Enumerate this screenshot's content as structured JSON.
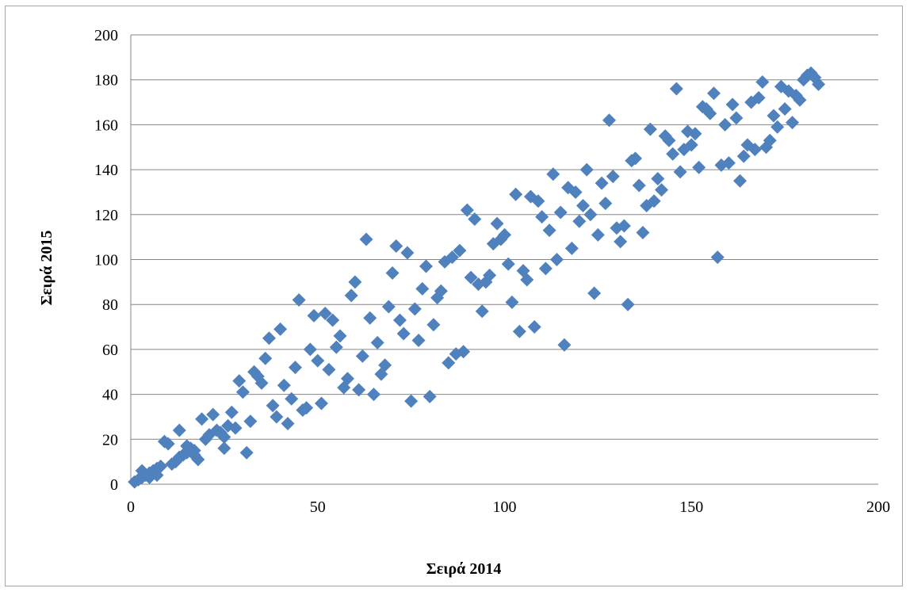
{
  "chart_data": {
    "type": "scatter",
    "title": "",
    "xlabel": "Σειρά 2014",
    "ylabel": "Σειρά 2015",
    "xlim": [
      0,
      200
    ],
    "ylim": [
      0,
      200
    ],
    "x_ticks": [
      "0",
      "50",
      "100",
      "150",
      "200"
    ],
    "y_ticks": [
      "0",
      "20",
      "40",
      "60",
      "80",
      "100",
      "120",
      "140",
      "160",
      "180",
      "200"
    ],
    "grid": "horizontal",
    "legend": "none",
    "marker": "diamond",
    "color": "#4f81bd",
    "points": [
      [
        1,
        1
      ],
      [
        2,
        2
      ],
      [
        3,
        3
      ],
      [
        3,
        6
      ],
      [
        4,
        4
      ],
      [
        5,
        5
      ],
      [
        5,
        3
      ],
      [
        6,
        6
      ],
      [
        7,
        7
      ],
      [
        7,
        4
      ],
      [
        8,
        8
      ],
      [
        9,
        19
      ],
      [
        10,
        18
      ],
      [
        11,
        9
      ],
      [
        12,
        10
      ],
      [
        13,
        24
      ],
      [
        13,
        12
      ],
      [
        14,
        13
      ],
      [
        15,
        14
      ],
      [
        15,
        17
      ],
      [
        16,
        16
      ],
      [
        17,
        15
      ],
      [
        17,
        13
      ],
      [
        18,
        11
      ],
      [
        19,
        29
      ],
      [
        20,
        20
      ],
      [
        21,
        22
      ],
      [
        22,
        31
      ],
      [
        23,
        24
      ],
      [
        24,
        23
      ],
      [
        25,
        16
      ],
      [
        25,
        21
      ],
      [
        26,
        26
      ],
      [
        27,
        32
      ],
      [
        28,
        25
      ],
      [
        29,
        46
      ],
      [
        30,
        41
      ],
      [
        31,
        14
      ],
      [
        32,
        28
      ],
      [
        33,
        50
      ],
      [
        34,
        48
      ],
      [
        35,
        45
      ],
      [
        36,
        56
      ],
      [
        37,
        65
      ],
      [
        38,
        35
      ],
      [
        39,
        30
      ],
      [
        40,
        69
      ],
      [
        41,
        44
      ],
      [
        42,
        27
      ],
      [
        43,
        38
      ],
      [
        44,
        52
      ],
      [
        45,
        82
      ],
      [
        46,
        33
      ],
      [
        47,
        34
      ],
      [
        48,
        60
      ],
      [
        49,
        75
      ],
      [
        50,
        55
      ],
      [
        51,
        36
      ],
      [
        52,
        76
      ],
      [
        53,
        51
      ],
      [
        54,
        73
      ],
      [
        55,
        61
      ],
      [
        56,
        66
      ],
      [
        57,
        43
      ],
      [
        58,
        47
      ],
      [
        59,
        84
      ],
      [
        60,
        90
      ],
      [
        61,
        42
      ],
      [
        62,
        57
      ],
      [
        63,
        109
      ],
      [
        64,
        74
      ],
      [
        65,
        40
      ],
      [
        66,
        63
      ],
      [
        67,
        49
      ],
      [
        68,
        53
      ],
      [
        69,
        79
      ],
      [
        70,
        94
      ],
      [
        71,
        106
      ],
      [
        72,
        73
      ],
      [
        73,
        67
      ],
      [
        74,
        103
      ],
      [
        75,
        37
      ],
      [
        76,
        78
      ],
      [
        77,
        64
      ],
      [
        78,
        87
      ],
      [
        79,
        97
      ],
      [
        80,
        39
      ],
      [
        81,
        71
      ],
      [
        82,
        83
      ],
      [
        83,
        86
      ],
      [
        84,
        99
      ],
      [
        85,
        54
      ],
      [
        86,
        101
      ],
      [
        87,
        58
      ],
      [
        88,
        104
      ],
      [
        89,
        59
      ],
      [
        90,
        122
      ],
      [
        91,
        92
      ],
      [
        92,
        118
      ],
      [
        93,
        89
      ],
      [
        94,
        77
      ],
      [
        95,
        90
      ],
      [
        96,
        93
      ],
      [
        97,
        107
      ],
      [
        98,
        116
      ],
      [
        99,
        109
      ],
      [
        100,
        111
      ],
      [
        101,
        98
      ],
      [
        102,
        81
      ],
      [
        103,
        129
      ],
      [
        104,
        68
      ],
      [
        105,
        95
      ],
      [
        106,
        91
      ],
      [
        107,
        128
      ],
      [
        108,
        70
      ],
      [
        109,
        126
      ],
      [
        110,
        119
      ],
      [
        111,
        96
      ],
      [
        112,
        113
      ],
      [
        113,
        138
      ],
      [
        114,
        100
      ],
      [
        115,
        121
      ],
      [
        116,
        62
      ],
      [
        117,
        132
      ],
      [
        118,
        105
      ],
      [
        119,
        130
      ],
      [
        120,
        117
      ],
      [
        121,
        124
      ],
      [
        122,
        140
      ],
      [
        123,
        120
      ],
      [
        124,
        85
      ],
      [
        125,
        111
      ],
      [
        126,
        134
      ],
      [
        127,
        125
      ],
      [
        128,
        162
      ],
      [
        129,
        137
      ],
      [
        130,
        114
      ],
      [
        131,
        108
      ],
      [
        132,
        115
      ],
      [
        133,
        80
      ],
      [
        134,
        144
      ],
      [
        135,
        145
      ],
      [
        136,
        133
      ],
      [
        137,
        112
      ],
      [
        138,
        124
      ],
      [
        139,
        158
      ],
      [
        140,
        126
      ],
      [
        141,
        136
      ],
      [
        142,
        131
      ],
      [
        143,
        155
      ],
      [
        144,
        153
      ],
      [
        145,
        147
      ],
      [
        146,
        176
      ],
      [
        147,
        139
      ],
      [
        148,
        149
      ],
      [
        149,
        157
      ],
      [
        150,
        151
      ],
      [
        151,
        156
      ],
      [
        152,
        141
      ],
      [
        153,
        168
      ],
      [
        154,
        167
      ],
      [
        155,
        165
      ],
      [
        156,
        174
      ],
      [
        157,
        101
      ],
      [
        158,
        142
      ],
      [
        159,
        160
      ],
      [
        160,
        143
      ],
      [
        161,
        169
      ],
      [
        162,
        163
      ],
      [
        163,
        135
      ],
      [
        164,
        146
      ],
      [
        165,
        151
      ],
      [
        166,
        170
      ],
      [
        167,
        149
      ],
      [
        168,
        172
      ],
      [
        169,
        179
      ],
      [
        170,
        150
      ],
      [
        171,
        153
      ],
      [
        172,
        164
      ],
      [
        173,
        159
      ],
      [
        174,
        177
      ],
      [
        175,
        167
      ],
      [
        176,
        175
      ],
      [
        177,
        161
      ],
      [
        178,
        173
      ],
      [
        179,
        171
      ],
      [
        180,
        180
      ],
      [
        181,
        182
      ],
      [
        182,
        183
      ],
      [
        183,
        181
      ],
      [
        184,
        178
      ]
    ]
  }
}
